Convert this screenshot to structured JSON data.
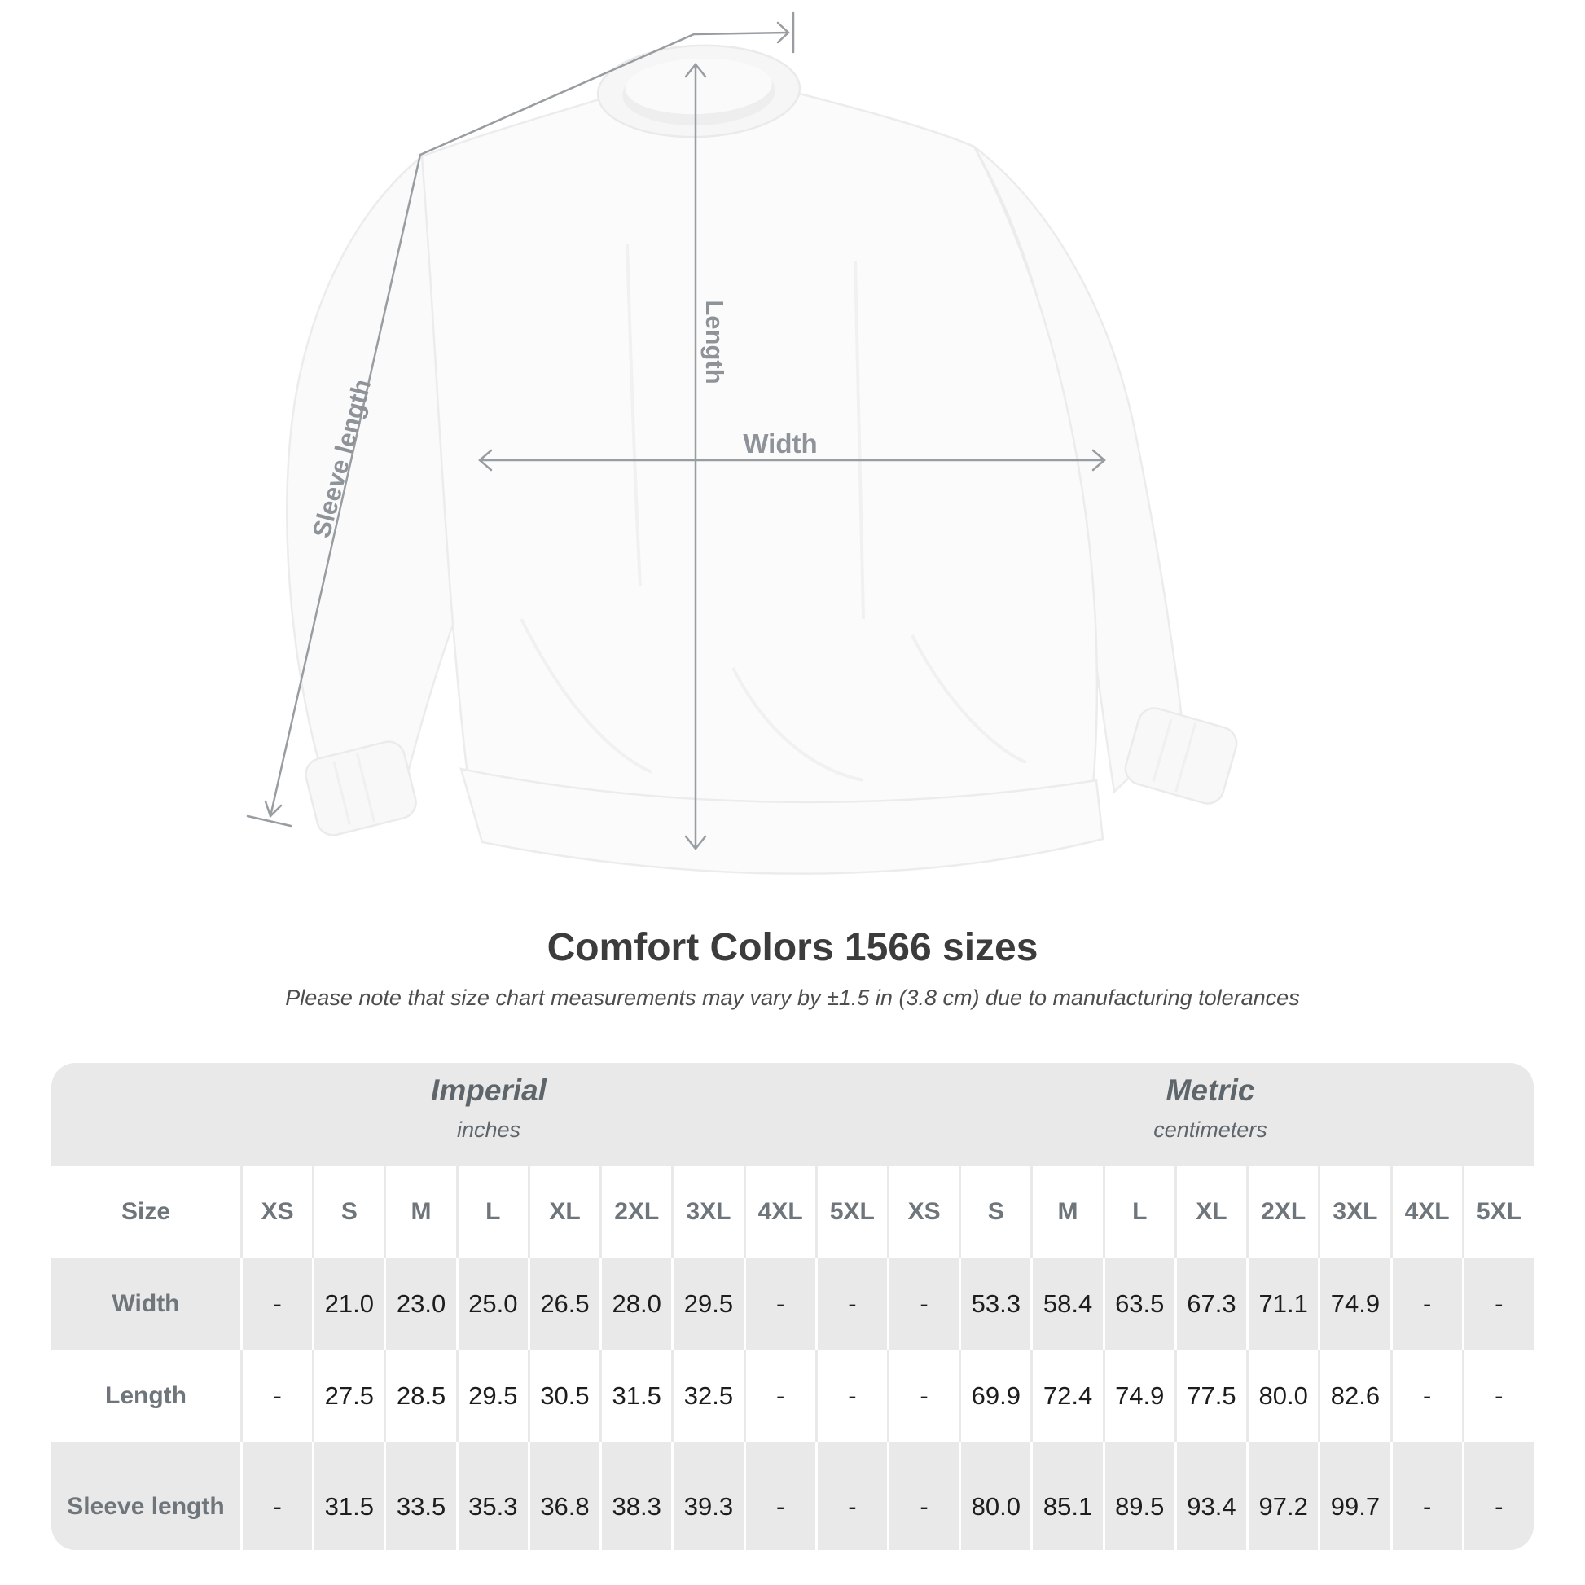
{
  "title": "Comfort Colors 1566 sizes",
  "subtitle": "Please note that size chart measurements may vary by ±1.5 in (3.8 cm) due to manufacturing tolerances",
  "diagram": {
    "length_label": "Length",
    "width_label": "Width",
    "sleeve_label": "Sleeve length"
  },
  "colors": {
    "table_background": "#e9e9e9",
    "annotation_gray": "#8d9399",
    "line_gray": "#989da1",
    "header_text": "#6e757b",
    "value_text": "#1d1d1d",
    "title_text": "#3c3c3c"
  },
  "chart_data": {
    "type": "table",
    "title": "Comfort Colors 1566 sizes",
    "corner_header": "Size",
    "unit_groups": [
      {
        "label": "Imperial",
        "sublabel": "inches"
      },
      {
        "label": "Metric",
        "sublabel": "centimeters"
      }
    ],
    "sizes": [
      "XS",
      "S",
      "M",
      "L",
      "XL",
      "2XL",
      "3XL",
      "4XL",
      "5XL"
    ],
    "rows": [
      {
        "label": "Width",
        "imperial": [
          "-",
          "21.0",
          "23.0",
          "25.0",
          "26.5",
          "28.0",
          "29.5",
          "-",
          "-"
        ],
        "metric": [
          "-",
          "53.3",
          "58.4",
          "63.5",
          "67.3",
          "71.1",
          "74.9",
          "-",
          "-"
        ]
      },
      {
        "label": "Length",
        "imperial": [
          "-",
          "27.5",
          "28.5",
          "29.5",
          "30.5",
          "31.5",
          "32.5",
          "-",
          "-"
        ],
        "metric": [
          "-",
          "69.9",
          "72.4",
          "74.9",
          "77.5",
          "80.0",
          "82.6",
          "-",
          "-"
        ]
      },
      {
        "label": "Sleeve length",
        "imperial": [
          "-",
          "31.5",
          "33.5",
          "35.3",
          "36.8",
          "38.3",
          "39.3",
          "-",
          "-"
        ],
        "metric": [
          "-",
          "80.0",
          "85.1",
          "89.5",
          "93.4",
          "97.2",
          "99.7",
          "-",
          "-"
        ]
      }
    ]
  }
}
